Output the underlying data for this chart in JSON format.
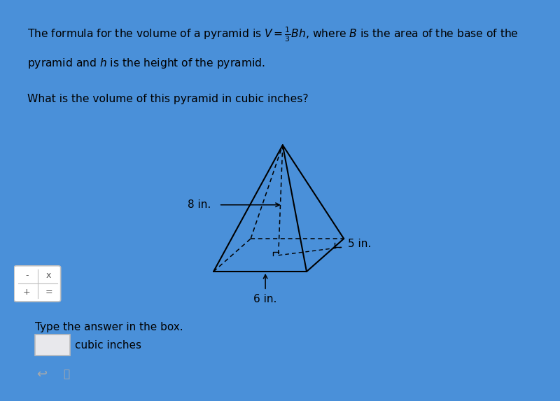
{
  "bg_color": "#4A90D9",
  "top_panel_color": "#D0DDF0",
  "mid_panel_color": "#EBEBEB",
  "bottom_panel_color": "#FFFFFF",
  "dim_8in": "8 in.",
  "dim_5in": "5 in.",
  "dim_6in": "6 in.",
  "answer_label": "Type the answer in the box.",
  "answer_unit": "cubic inches",
  "top_text1": "The formula for the volume of a pyramid is $V = \\frac{1}{3}Bh$, where $B$ is the area of the base of the",
  "top_text2": "pyramid and $h$ is the height of the pyramid.",
  "top_text3": "What is the volume of this pyramid in cubic inches?"
}
